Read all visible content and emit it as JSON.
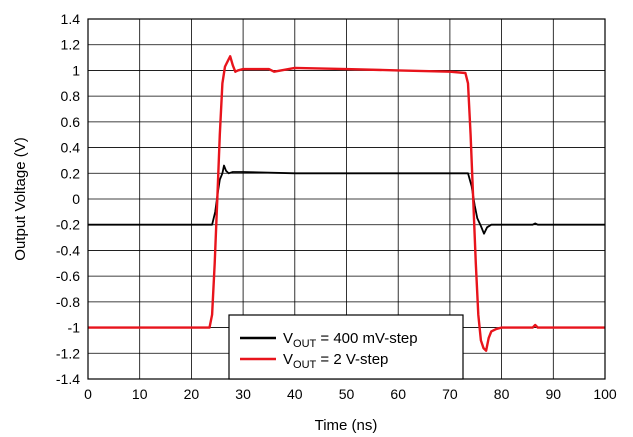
{
  "chart_data": {
    "type": "line",
    "title": "",
    "xlabel": "Time (ns)",
    "ylabel": "Output Voltage (V)",
    "xlim": [
      0,
      100
    ],
    "ylim": [
      -1.4,
      1.4
    ],
    "xticks": [
      0,
      10,
      20,
      30,
      40,
      50,
      60,
      70,
      80,
      90,
      100
    ],
    "yticks": [
      1.4,
      1.2,
      1,
      0.8,
      0.6,
      0.4,
      0.2,
      0,
      -0.2,
      -0.4,
      -0.6,
      -0.8,
      -1,
      -1.2,
      -1.4
    ],
    "xtick_labels": [
      "0",
      "10",
      "20",
      "30",
      "40",
      "50",
      "60",
      "70",
      "80",
      "90",
      "100"
    ],
    "ytick_labels": [
      "1.4",
      "1.2",
      "1",
      "0.8",
      "0.6",
      "0.4",
      "0.2",
      "0",
      "-0.2",
      "-0.4",
      "-0.6",
      "-0.8",
      "-1",
      "-1.2",
      "-1.4"
    ],
    "grid": true,
    "legend_position": "bottom-center",
    "series": [
      {
        "legend_main": "V",
        "legend_sub": "OUT",
        "legend_rest": " = 400 mV-step",
        "color": "#000000",
        "x": [
          0,
          24,
          24.6,
          25.1,
          25.5,
          26,
          26.3,
          26.7,
          27.2,
          28,
          30,
          40,
          50,
          60,
          70,
          73.5,
          74.2,
          74.8,
          75.3,
          76,
          76.6,
          77.2,
          78,
          80,
          86,
          86.5,
          87,
          90,
          100
        ],
        "y": [
          -0.2,
          -0.2,
          -0.1,
          0.05,
          0.15,
          0.2,
          0.26,
          0.22,
          0.2,
          0.21,
          0.21,
          0.2,
          0.2,
          0.2,
          0.2,
          0.2,
          0.1,
          -0.05,
          -0.15,
          -0.21,
          -0.27,
          -0.22,
          -0.2,
          -0.2,
          -0.2,
          -0.19,
          -0.2,
          -0.2,
          -0.2
        ]
      },
      {
        "legend_main": "V",
        "legend_sub": "OUT",
        "legend_rest": " = 2 V-step",
        "color": "#e8141c",
        "x": [
          0,
          23.5,
          24,
          24.5,
          25,
          25.5,
          26,
          26.5,
          27,
          27.5,
          28,
          28.5,
          29,
          30,
          35,
          36,
          40,
          50,
          60,
          70,
          73,
          73.5,
          74,
          74.5,
          75,
          75.5,
          76,
          76.5,
          77,
          77.5,
          78,
          79,
          80,
          86,
          86.5,
          87,
          90,
          100
        ],
        "y": [
          -1.0,
          -1.0,
          -0.9,
          -0.5,
          0.0,
          0.5,
          0.9,
          1.03,
          1.07,
          1.11,
          1.04,
          0.99,
          1.0,
          1.01,
          1.01,
          0.99,
          1.02,
          1.01,
          1.0,
          0.99,
          0.98,
          0.9,
          0.5,
          0.0,
          -0.5,
          -0.9,
          -1.1,
          -1.16,
          -1.18,
          -1.08,
          -1.03,
          -1.01,
          -1.0,
          -1.0,
          -0.98,
          -1.0,
          -1.0,
          -1.0
        ]
      }
    ]
  }
}
